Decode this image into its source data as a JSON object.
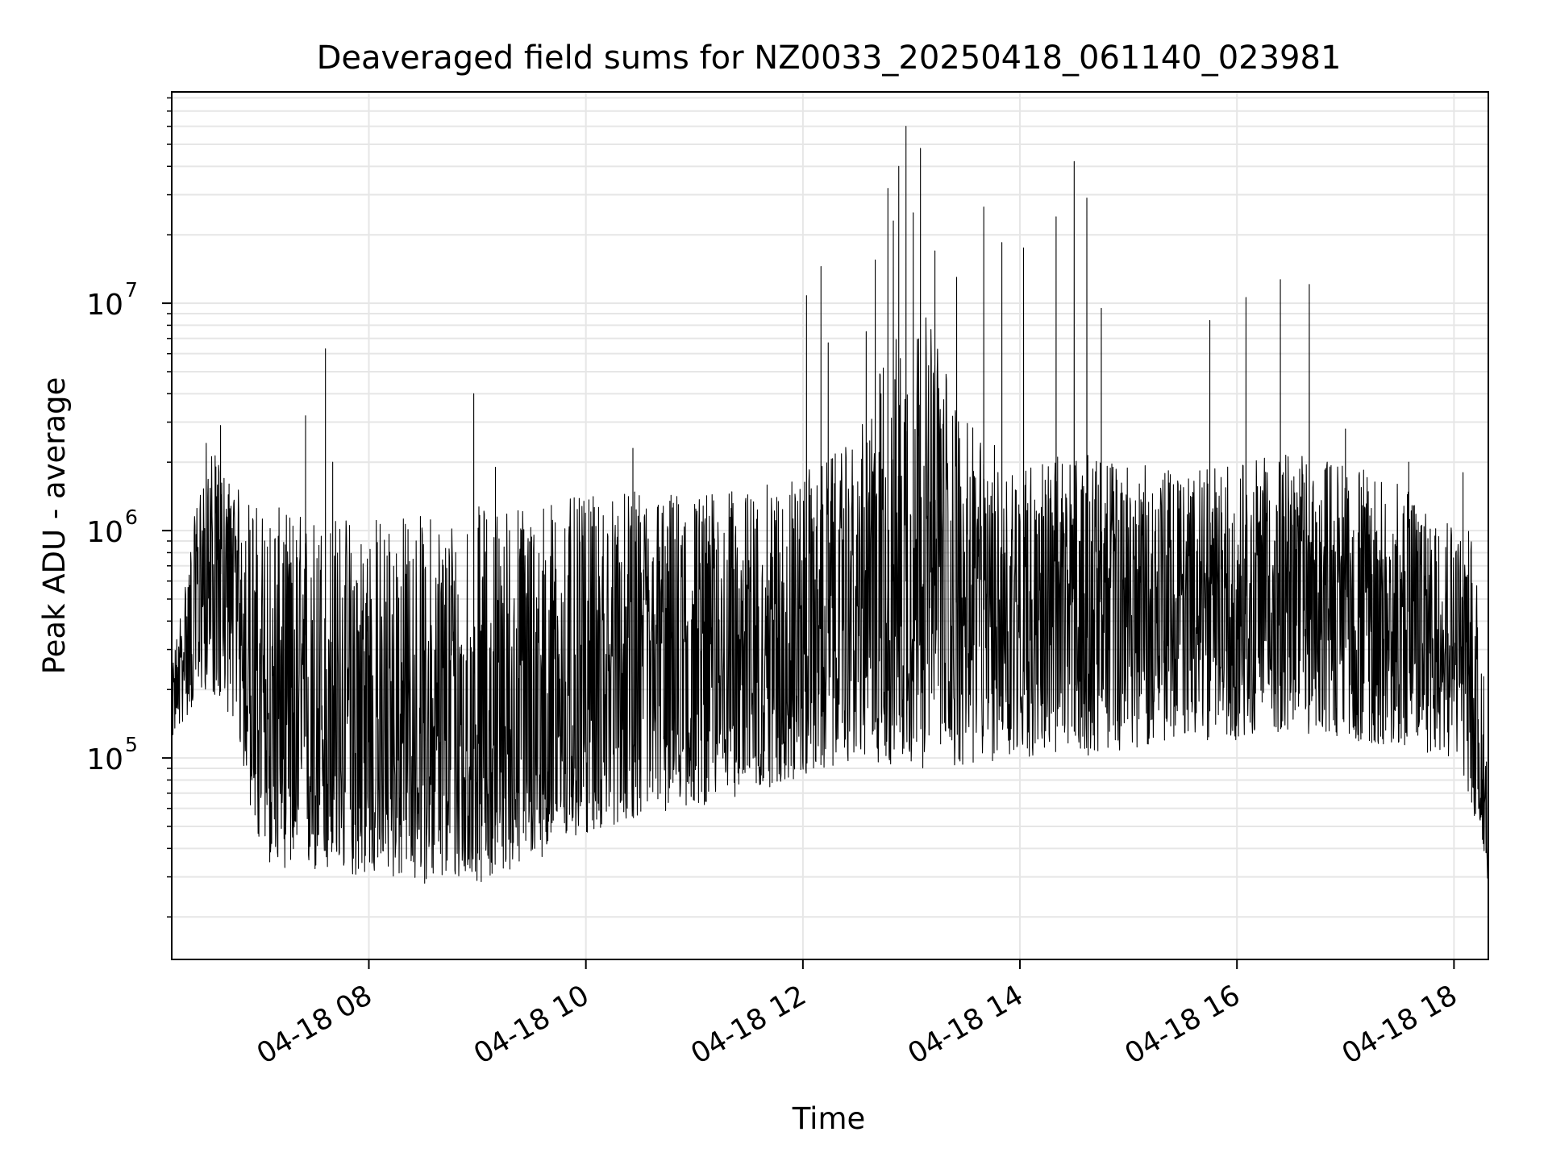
{
  "chart_data": {
    "type": "line",
    "title": "Deaveraged field sums for NZ0033_20250418_061140_023981",
    "xlabel": "Time",
    "ylabel": "Peak ADU - average",
    "yscale": "log",
    "xlim": [
      "04-18 06:11",
      "04-18 18:19"
    ],
    "ylim": [
      13000,
      85000000
    ],
    "x_ticks": [
      "04-18 08:00",
      "04-18 10:00",
      "04-18 12:00",
      "04-18 14:00",
      "04-18 16:00",
      "04-18 18:00"
    ],
    "x_tick_labels": [
      "04-18 08",
      "04-18 10",
      "04-18 12",
      "04-18 14",
      "04-18 16",
      "04-18 18"
    ],
    "y_ticks": [
      100000,
      1000000,
      10000000
    ],
    "y_tick_labels": [
      {
        "base": "10",
        "exp": "5"
      },
      {
        "base": "10",
        "exp": "6"
      },
      {
        "base": "10",
        "exp": "7"
      }
    ],
    "grid": true,
    "legend": "none",
    "series": [
      {
        "color": "#000000",
        "envelope": {
          "x": [
            "04-18 06:11",
            "04-18 06:30",
            "04-18 06:45",
            "04-18 07:00",
            "04-18 07:30",
            "04-18 08:00",
            "04-18 08:30",
            "04-18 09:00",
            "04-18 09:30",
            "04-18 10:00",
            "04-18 10:30",
            "04-18 11:00",
            "04-18 11:30",
            "04-18 12:00",
            "04-18 12:30",
            "04-18 12:50",
            "04-18 13:10",
            "04-18 13:30",
            "04-18 14:00",
            "04-18 14:30",
            "04-18 15:00",
            "04-18 15:30",
            "04-18 16:00",
            "04-18 16:30",
            "04-18 17:00",
            "04-18 17:30",
            "04-18 18:00",
            "04-18 18:10",
            "04-18 18:19"
          ],
          "low": [
            120000,
            200000,
            150000,
            35000,
            30000,
            30000,
            28000,
            28000,
            35000,
            45000,
            55000,
            60000,
            70000,
            80000,
            100000,
            90000,
            90000,
            90000,
            100000,
            100000,
            110000,
            120000,
            120000,
            130000,
            120000,
            110000,
            100000,
            60000,
            25000
          ],
          "mid": [
            180000,
            700000,
            600000,
            150000,
            120000,
            120000,
            110000,
            110000,
            130000,
            200000,
            250000,
            280000,
            300000,
            320000,
            400000,
            600000,
            600000,
            450000,
            450000,
            500000,
            500000,
            450000,
            500000,
            600000,
            550000,
            450000,
            400000,
            200000,
            40000
          ],
          "high": [
            250000,
            2500000,
            1600000,
            1300000,
            1200000,
            1200000,
            1200000,
            1300000,
            1400000,
            1400000,
            1500000,
            1500000,
            1500000,
            1800000,
            2500000,
            8000000,
            9000000,
            3000000,
            2000000,
            2200000,
            2000000,
            1800000,
            2000000,
            2200000,
            2000000,
            1600000,
            1200000,
            1000000,
            150000
          ]
        },
        "spikes": [
          {
            "x": "04-18 06:38",
            "y": 2900000
          },
          {
            "x": "04-18 07:25",
            "y": 3200000
          },
          {
            "x": "04-18 07:36",
            "y": 6300000
          },
          {
            "x": "04-18 07:40",
            "y": 2000000
          },
          {
            "x": "04-18 08:58",
            "y": 4000000
          },
          {
            "x": "04-18 09:10",
            "y": 1900000
          },
          {
            "x": "04-18 10:26",
            "y": 2300000
          },
          {
            "x": "04-18 12:02",
            "y": 10800000
          },
          {
            "x": "04-18 12:10",
            "y": 14500000
          },
          {
            "x": "04-18 12:14",
            "y": 6700000
          },
          {
            "x": "04-18 12:35",
            "y": 7500000
          },
          {
            "x": "04-18 12:40",
            "y": 15500000
          },
          {
            "x": "04-18 12:47",
            "y": 32000000
          },
          {
            "x": "04-18 12:50",
            "y": 23000000
          },
          {
            "x": "04-18 12:53",
            "y": 40000000
          },
          {
            "x": "04-18 12:57",
            "y": 60000000
          },
          {
            "x": "04-18 13:01",
            "y": 25000000
          },
          {
            "x": "04-18 13:05",
            "y": 48000000
          },
          {
            "x": "04-18 13:13",
            "y": 17000000
          },
          {
            "x": "04-18 13:25",
            "y": 13000000
          },
          {
            "x": "04-18 13:40",
            "y": 26500000
          },
          {
            "x": "04-18 13:50",
            "y": 18500000
          },
          {
            "x": "04-18 14:02",
            "y": 17500000
          },
          {
            "x": "04-18 14:20",
            "y": 24000000
          },
          {
            "x": "04-18 14:30",
            "y": 42000000
          },
          {
            "x": "04-18 14:37",
            "y": 29000000
          },
          {
            "x": "04-18 14:45",
            "y": 9500000
          },
          {
            "x": "04-18 15:45",
            "y": 8400000
          },
          {
            "x": "04-18 16:05",
            "y": 10600000
          },
          {
            "x": "04-18 16:24",
            "y": 12700000
          },
          {
            "x": "04-18 16:40",
            "y": 12100000
          },
          {
            "x": "04-18 17:00",
            "y": 2800000
          },
          {
            "x": "04-18 17:35",
            "y": 2000000
          },
          {
            "x": "04-18 18:05",
            "y": 1800000
          }
        ]
      }
    ]
  }
}
